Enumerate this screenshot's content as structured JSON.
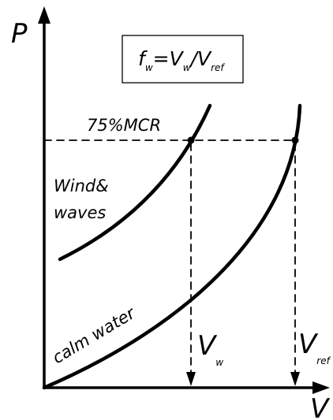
{
  "axes": {
    "y_label": "P",
    "x_label": "V"
  },
  "formula": {
    "f": "f",
    "f_sub": "w",
    "eq": "=",
    "v1": "V",
    "v1_sub": "w",
    "slash": "/",
    "v2": "V",
    "v2_sub": "ref"
  },
  "labels": {
    "mcr": "75%MCR",
    "wind_line1": "Wind&",
    "wind_line2": "waves",
    "calm_water": "calm water",
    "vw": "V",
    "vw_sub": "w",
    "vref": "V",
    "vref_sub": "ref"
  },
  "curves": [
    {
      "name": "Wind&waves"
    },
    {
      "name": "calm water"
    }
  ]
}
